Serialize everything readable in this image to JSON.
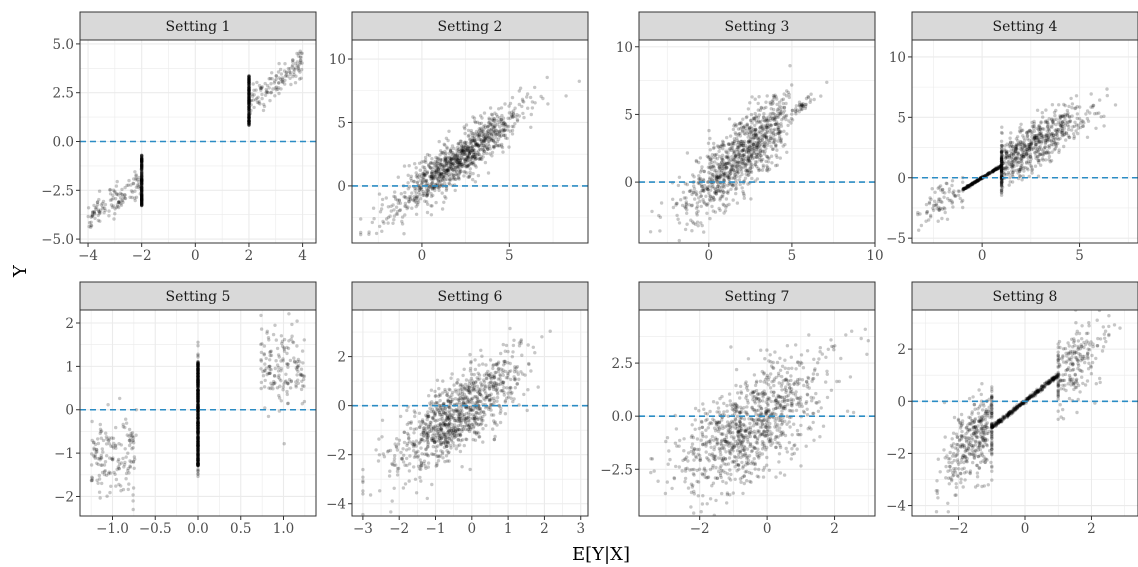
{
  "colors": {
    "point": "#000000",
    "reference_line": "#2b8cc4",
    "strip_fill": "#d9d9d9",
    "grid": "#ebebeb"
  },
  "chart_data": {
    "type": "scatter",
    "xlabel": "E[Y|X]",
    "ylabel": "Y",
    "grid": true,
    "reference_line": {
      "y": 0,
      "style": "dashed"
    },
    "panels": [
      {
        "title": "Setting 1",
        "xlim": [
          -4.3,
          4.5
        ],
        "ylim": [
          -5.2,
          5.2
        ],
        "xticks": [
          -4,
          -2,
          0,
          2,
          4
        ],
        "xtick_labels": [
          "−4",
          "−2",
          "0",
          "2",
          "4"
        ],
        "yticks": [
          -5,
          -2.5,
          0,
          2.5,
          5
        ],
        "ytick_labels": [
          "−5.0",
          "−2.5",
          "0.0",
          "2.5",
          "5.0"
        ],
        "clusters": [
          {
            "kind": "band",
            "x_range": [
              -4,
              -2
            ],
            "slope": 1,
            "intercept": 0,
            "noise_sd": 0.35,
            "n": 130
          },
          {
            "kind": "band",
            "x_range": [
              2,
              4
            ],
            "slope": 1,
            "intercept": 0,
            "noise_sd": 0.35,
            "n": 130
          },
          {
            "kind": "column",
            "x": -2,
            "y_range": [
              -3.3,
              -0.7
            ],
            "n": 220
          },
          {
            "kind": "column",
            "x": 2,
            "y_range": [
              0.8,
              3.4
            ],
            "n": 220
          }
        ]
      },
      {
        "title": "Setting 2",
        "xlim": [
          -4,
          9.5
        ],
        "ylim": [
          -4.5,
          11.5
        ],
        "xticks": [
          0,
          5
        ],
        "xtick_labels": [
          "0",
          "5"
        ],
        "yticks": [
          0,
          5,
          10
        ],
        "ytick_labels": [
          "0",
          "5",
          "10"
        ],
        "clusters": [
          {
            "kind": "band",
            "x_center": 2,
            "x_sd": 1.8,
            "x_range": [
              -3.5,
              9
            ],
            "slope": 1,
            "intercept": 0,
            "noise_sd": 0.9,
            "n": 1000
          }
        ]
      },
      {
        "title": "Setting 3",
        "xlim": [
          -4.2,
          10
        ],
        "ylim": [
          -4.5,
          10.5
        ],
        "xticks": [
          0,
          5,
          10
        ],
        "xtick_labels": [
          "0",
          "5",
          "10"
        ],
        "yticks": [
          0,
          5,
          10
        ],
        "ytick_labels": [
          "0",
          "5",
          "10"
        ],
        "clusters": [
          {
            "kind": "band",
            "x_center": 2,
            "x_sd": 1.8,
            "x_range": [
              -3.5,
              9
            ],
            "slope": 1,
            "intercept": 0,
            "noise_sd": 1.3,
            "noise_taper_at_x": 5,
            "n": 1000
          }
        ]
      },
      {
        "title": "Setting 4",
        "xlim": [
          -3.6,
          8
        ],
        "ylim": [
          -5.4,
          11.4
        ],
        "xticks": [
          0,
          5
        ],
        "xtick_labels": [
          "0",
          "5"
        ],
        "yticks": [
          -5,
          0,
          5,
          10
        ],
        "ytick_labels": [
          "−5",
          "0",
          "5",
          "10"
        ],
        "clusters": [
          {
            "kind": "line",
            "x_range": [
              -1,
              1
            ],
            "slope": 1,
            "intercept": 0,
            "n": 220
          },
          {
            "kind": "band",
            "x_center": 2.5,
            "x_sd": 1.4,
            "x_range": [
              1,
              7.5
            ],
            "slope": 1,
            "intercept": 0,
            "noise_sd": 1.0,
            "n": 700
          },
          {
            "kind": "band",
            "x_center": -2,
            "x_sd": 0.7,
            "x_range": [
              -3.3,
              -1
            ],
            "slope": 1,
            "intercept": 0,
            "noise_sd": 0.7,
            "n": 80
          }
        ]
      },
      {
        "title": "Setting 5",
        "xlim": [
          -1.38,
          1.38
        ],
        "ylim": [
          -2.45,
          2.3
        ],
        "xticks": [
          -1,
          -0.5,
          0,
          0.5,
          1
        ],
        "xtick_labels": [
          "−1.0",
          "−0.5",
          "0.0",
          "0.5",
          "1.0"
        ],
        "yticks": [
          -2,
          -1,
          0,
          1,
          2
        ],
        "ytick_labels": [
          "−2",
          "−1",
          "0",
          "1",
          "2"
        ],
        "clusters": [
          {
            "kind": "band",
            "x_range": [
              -1.25,
              -0.72
            ],
            "y_center": -1.0,
            "noise_sd": 0.45,
            "n": 160
          },
          {
            "kind": "band",
            "x_range": [
              0.72,
              1.25
            ],
            "y_center": 1.0,
            "noise_sd": 0.45,
            "n": 160
          },
          {
            "kind": "column",
            "x": 0,
            "y_range": [
              -1.3,
              1.1
            ],
            "n": 600
          },
          {
            "kind": "column",
            "x": 0,
            "y_range": [
              -1.6,
              1.6
            ],
            "n": 40
          }
        ]
      },
      {
        "title": "Setting 6",
        "xlim": [
          -3.3,
          3.2
        ],
        "ylim": [
          -4.5,
          3.9
        ],
        "xticks": [
          -3,
          -2,
          -1,
          0,
          1,
          2,
          3
        ],
        "xtick_labels": [
          "−3",
          "−2",
          "−1",
          "0",
          "1",
          "2",
          "3"
        ],
        "yticks": [
          -4,
          -2,
          0,
          2
        ],
        "ytick_labels": [
          "−4",
          "−2",
          "0",
          "2"
        ],
        "clusters": [
          {
            "kind": "band",
            "x_center": -0.4,
            "x_sd": 0.9,
            "x_range": [
              -3,
              2.8
            ],
            "slope": 1,
            "intercept": 0,
            "noise_sd": 0.75,
            "n": 1000
          }
        ]
      },
      {
        "title": "Setting 7",
        "xlim": [
          -3.8,
          3.2
        ],
        "ylim": [
          -4.7,
          5.0
        ],
        "xticks": [
          -2,
          0,
          2
        ],
        "xtick_labels": [
          "−2",
          "0",
          "2"
        ],
        "yticks": [
          -2.5,
          0,
          2.5
        ],
        "ytick_labels": [
          "−2.5",
          "0.0",
          "2.5"
        ],
        "clusters": [
          {
            "kind": "band",
            "x_center": -0.5,
            "x_sd": 1.1,
            "x_range": [
              -3.6,
              3
            ],
            "slope": 1,
            "intercept": 0,
            "noise_sd": 1.3,
            "n": 1000
          }
        ]
      },
      {
        "title": "Setting 8",
        "xlim": [
          -3.4,
          3.4
        ],
        "ylim": [
          -4.4,
          3.5
        ],
        "xticks": [
          -2,
          0,
          2
        ],
        "xtick_labels": [
          "−2",
          "0",
          "2"
        ],
        "yticks": [
          -4,
          -2,
          0,
          2
        ],
        "ytick_labels": [
          "−4",
          "−2",
          "0",
          "2"
        ],
        "clusters": [
          {
            "kind": "line",
            "x_range": [
              -1,
              1
            ],
            "slope": 1,
            "intercept": 0,
            "n": 350
          },
          {
            "kind": "band",
            "x_center": -1.5,
            "x_sd": 0.5,
            "x_range": [
              -3.2,
              -1
            ],
            "slope": 1,
            "intercept": 0,
            "noise_sd": 0.75,
            "n": 400
          },
          {
            "kind": "band",
            "x_center": 1.5,
            "x_sd": 0.5,
            "x_range": [
              1,
              3.3
            ],
            "slope": 1,
            "intercept": 0,
            "noise_sd": 0.7,
            "n": 220
          }
        ]
      }
    ]
  }
}
